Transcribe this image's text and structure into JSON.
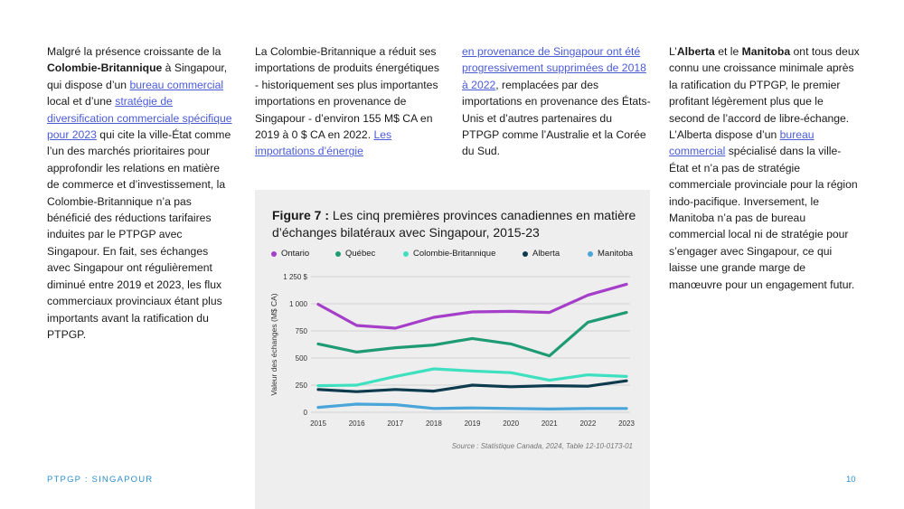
{
  "column1": {
    "s1": "Malgré la présence croissante de la ",
    "b1": "Colombie-Britannique",
    "s2": " à Singapour, qui dispose d’un ",
    "link1": "bureau commercial",
    "s3": " local et d’une ",
    "link2": "stratégie de diversification commerciale spécifique pour 2023",
    "s4": " qui cite la ville-État comme l’un des marchés prioritaires pour approfondir les relations en matière de commerce et d’investissement, la Colombie-Britannique n’a pas bénéficié des réductions tarifaires induites par le PTPGP avec Singapour. En fait, ses échanges avec Singapour ont régulièrement diminué entre 2019 et 2023, les flux commerciaux provinciaux étant plus importants avant la ratification du PTPGP."
  },
  "column2": {
    "s1": "La Colombie-Britannique a réduit ses importations de produits énergétiques - historiquement ses plus importantes importations en provenance de Singapour - d’environ 155 M$ CA en 2019 à 0 $ CA en 2022. ",
    "link1": "Les importations d’énergie"
  },
  "column3": {
    "link1": "en provenance de Singapour ont été progressivement supprimées de 2018 à 2022",
    "s1": ", remplacées par des importations en provenance des États-Unis et d’autres partenaires du PTPGP comme l’Australie et la Corée du Sud."
  },
  "column4": {
    "s1": "L’",
    "b1": "Alberta",
    "s2": " et le ",
    "b2": "Manitoba",
    "s3": " ont tous deux connu une croissance minimale après la ratification du PTPGP, le premier profitant légèrement plus que le second de l’accord de libre-échange. L’Alberta dispose d’un ",
    "link1": "bureau commercial",
    "s4": " spécialisé dans la ville-État et n’a pas de stratégie commerciale provinciale pour la région indo-pacifique. Inversement, le Manitoba n’a pas de bureau commercial local ni de stratégie pour s’engager avec Singapour, ce qui laisse une grande marge de manœuvre pour un engagement futur."
  },
  "figure": {
    "label": "Figure 7 :",
    "title": " Les cinq premières provinces canadiennes en matière d’échanges bilatéraux avec Singapour, 2015-23",
    "source": "Source : Statistique Canada, 2024, Table 12-10-0173-01"
  },
  "chart_data": {
    "type": "line",
    "x": [
      2015,
      2016,
      2017,
      2018,
      2019,
      2020,
      2021,
      2022,
      2023
    ],
    "x_tick_labels": [
      "2015",
      "2016",
      "2017",
      "2018",
      "2019",
      "2020",
      "2021",
      "2022",
      "2023"
    ],
    "ylabel": "Valeur des échanges (M$ CA)",
    "xlabel": "",
    "ylim": [
      0,
      1250
    ],
    "y_ticks": [
      0,
      250,
      500,
      750,
      1000,
      1250
    ],
    "y_tick_labels": [
      "0",
      "250",
      "500",
      "750",
      "1 000",
      "1 250 $"
    ],
    "grid": true,
    "legend": "top",
    "series": [
      {
        "name": "Ontario",
        "color": "#a53fc9",
        "values": [
          995,
          800,
          775,
          875,
          925,
          930,
          920,
          1080,
          1180
        ]
      },
      {
        "name": "Québec",
        "color": "#1f9b74",
        "values": [
          630,
          555,
          595,
          620,
          680,
          630,
          520,
          830,
          920
        ]
      },
      {
        "name": "Colombie-Britannique",
        "color": "#3ee0c0",
        "values": [
          245,
          250,
          330,
          400,
          380,
          365,
          295,
          345,
          330
        ]
      },
      {
        "name": "Alberta",
        "color": "#0d3a4d",
        "values": [
          210,
          190,
          210,
          195,
          250,
          235,
          245,
          240,
          290
        ]
      },
      {
        "name": "Manitoba",
        "color": "#4aa5d9",
        "values": [
          45,
          75,
          70,
          35,
          40,
          35,
          30,
          35,
          35
        ]
      }
    ]
  },
  "footer": {
    "left": "PTPGP : SINGAPOUR",
    "page": "10"
  }
}
